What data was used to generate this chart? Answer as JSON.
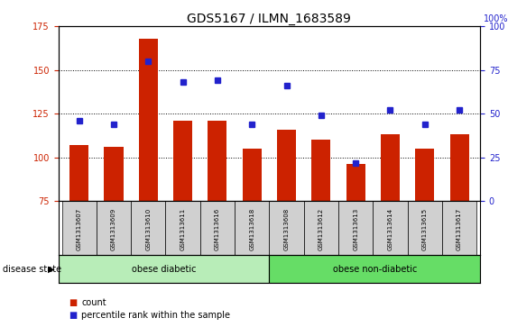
{
  "title": "GDS5167 / ILMN_1683589",
  "samples": [
    "GSM1313607",
    "GSM1313609",
    "GSM1313610",
    "GSM1313611",
    "GSM1313616",
    "GSM1313618",
    "GSM1313608",
    "GSM1313612",
    "GSM1313613",
    "GSM1313614",
    "GSM1313615",
    "GSM1313617"
  ],
  "counts": [
    107,
    106,
    168,
    121,
    121,
    105,
    116,
    110,
    96,
    113,
    105,
    113
  ],
  "percentile_ranks": [
    46,
    44,
    80,
    68,
    69,
    44,
    66,
    49,
    22,
    52,
    44,
    52
  ],
  "ylim_left": [
    75,
    175
  ],
  "yticks_left": [
    75,
    100,
    125,
    150,
    175
  ],
  "yticks_right": [
    0,
    25,
    50,
    75,
    100
  ],
  "bar_color": "#cc2200",
  "dot_color": "#2222cc",
  "tick_bg_color": "#d0d0d0",
  "group_colors": [
    "#aaddaa",
    "#66cc66"
  ],
  "group_labels": [
    "obese diabetic",
    "obese non-diabetic"
  ],
  "group_boundaries": [
    0,
    6,
    12
  ],
  "disease_state_label": "disease state",
  "legend_count_label": "count",
  "legend_pct_label": "percentile rank within the sample",
  "title_fontsize": 10,
  "tick_fontsize": 7,
  "sample_fontsize": 5,
  "label_fontsize": 7.5
}
